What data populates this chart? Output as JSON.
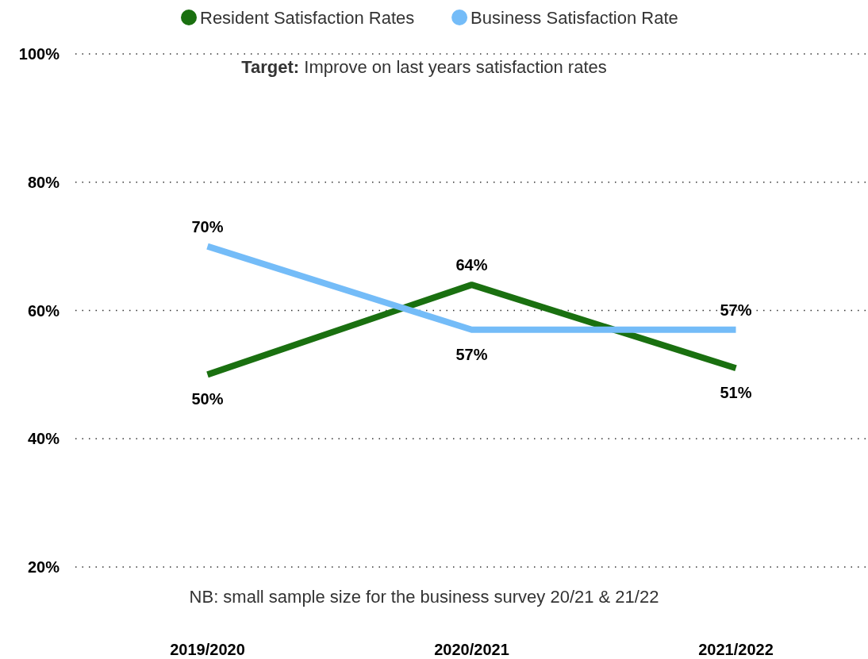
{
  "chart_data": {
    "type": "line",
    "categories": [
      "2019/2020",
      "2020/2021",
      "2021/2022"
    ],
    "series": [
      {
        "name": "Resident Satisfaction Rates",
        "color": "#1a7010",
        "values": [
          50,
          64,
          51
        ],
        "value_labels": [
          "50%",
          "64%",
          "51%"
        ]
      },
      {
        "name": "Business Satisfaction Rate",
        "color": "#74bcf8",
        "values": [
          70,
          57,
          57
        ],
        "value_labels": [
          "70%",
          "57%",
          "57%"
        ]
      }
    ],
    "ylim": [
      20,
      100
    ],
    "yticks": [
      {
        "value": 20,
        "label": "20%"
      },
      {
        "value": 40,
        "label": "40%"
      },
      {
        "value": 60,
        "label": "60%"
      },
      {
        "value": 80,
        "label": "80%"
      },
      {
        "value": 100,
        "label": "100%"
      }
    ],
    "grid": "y",
    "legend": "top",
    "marker": "none",
    "line_style": "solid",
    "annotations": [
      "Target: Improve on last years satisfaction rates",
      "NB: small sample size for the business survey 20/21 & 21/22"
    ]
  }
}
